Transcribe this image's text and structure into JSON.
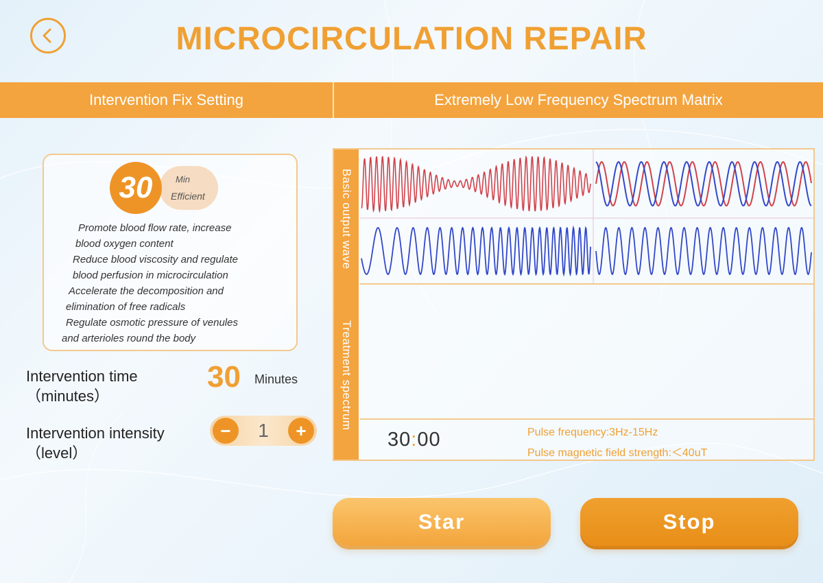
{
  "header": {
    "title": "MICROCIRCULATION REPAIR",
    "back_icon": "chevron-left-icon",
    "accent_color": "#f0a033"
  },
  "sections": {
    "left": "Intervention Fix Setting",
    "right": "Extremely Low Frequency Spectrum Matrix"
  },
  "info_card": {
    "badge_value": "30",
    "badge_unit": "Min",
    "badge_caption": "Efficient",
    "benefits": [
      "Promote blood flow rate, increase",
      "blood oxygen content",
      "Reduce blood viscosity and regulate",
      "blood perfusion in microcirculation",
      "Accelerate the decomposition and",
      "elimination of free radicals",
      "Regulate osmotic pressure of venules",
      "and arterioles round the body"
    ]
  },
  "settings": {
    "time": {
      "label": "Intervention time",
      "sublabel": "（minutes）",
      "value": "30",
      "unit": "Minutes"
    },
    "intensity": {
      "label": "Intervention intensity",
      "sublabel": "（level）",
      "value": "1",
      "decrement": "−",
      "increment": "+"
    }
  },
  "spectrum": {
    "labels": {
      "basic": "Basic output wave",
      "treatment": "Treatment spectrum"
    },
    "timer": {
      "minutes": "30",
      "separator": ":",
      "seconds": "00"
    },
    "pulse_frequency": "Pulse frequency:3Hz-15Hz",
    "pulse_field": "Pulse magnetic field strength:＜40uT",
    "wave_colors": {
      "red": "#d0414a",
      "blue": "#3247c8"
    }
  },
  "buttons": {
    "start": "Star",
    "stop": "Stop"
  }
}
